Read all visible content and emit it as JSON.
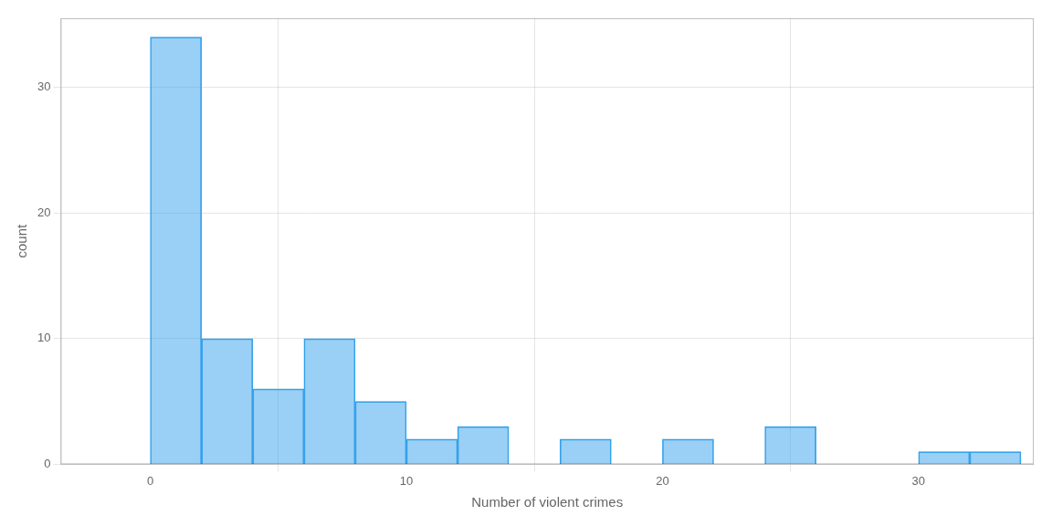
{
  "chart_data": {
    "type": "histogram",
    "xlabel": "Number of violent crimes",
    "ylabel": "count",
    "bins": [
      -2,
      0,
      2,
      4,
      6,
      8,
      10,
      12,
      14,
      16,
      18,
      20,
      22,
      24,
      26,
      28,
      30,
      32,
      34
    ],
    "values": [
      0,
      34,
      10,
      6,
      10,
      5,
      2,
      3,
      0,
      2,
      0,
      2,
      0,
      3,
      0,
      0,
      1,
      1
    ],
    "xlim": [
      -3.5,
      34.5
    ],
    "ylim": [
      0,
      35.5
    ],
    "xticks": [
      0,
      10,
      20,
      30
    ],
    "yticks": [
      0,
      10,
      20,
      30
    ],
    "grid": true
  }
}
